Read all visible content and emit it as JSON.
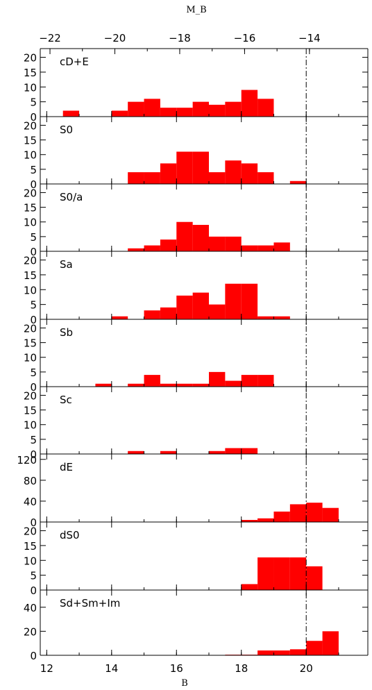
{
  "chart_data": {
    "type": "bar",
    "top_axis_label": "M_B",
    "bottom_axis_label": "B",
    "bottom_ticks": [
      12,
      14,
      16,
      18,
      20
    ],
    "bottom_xlim": [
      11.8,
      21.9
    ],
    "top_ticks": [
      -22,
      -20,
      -18,
      -16,
      -14
    ],
    "top_tick_labels": [
      "−22",
      "−20",
      "−18",
      "−16",
      "−14"
    ],
    "top_axis_offset": 34.1,
    "reference_line_x": 20.0,
    "bin_width": 0.5,
    "panels": [
      {
        "name": "cD+E",
        "ylim": [
          0,
          22
        ],
        "yticks": [
          0,
          5,
          10,
          15,
          20
        ],
        "bins": [
          [
            12.5,
            2
          ],
          [
            14.0,
            2
          ],
          [
            14.5,
            5
          ],
          [
            15.0,
            6
          ],
          [
            15.5,
            3
          ],
          [
            16.0,
            3
          ],
          [
            16.5,
            5
          ],
          [
            17.0,
            4
          ],
          [
            17.5,
            5
          ],
          [
            18.0,
            9
          ],
          [
            18.5,
            6
          ]
        ]
      },
      {
        "name": "S0",
        "ylim": [
          0,
          22
        ],
        "yticks": [
          0,
          5,
          10,
          15,
          20
        ],
        "bins": [
          [
            14.5,
            4
          ],
          [
            15.0,
            4
          ],
          [
            15.5,
            7
          ],
          [
            16.0,
            11
          ],
          [
            16.5,
            11
          ],
          [
            17.0,
            4
          ],
          [
            17.5,
            8
          ],
          [
            18.0,
            7
          ],
          [
            18.5,
            4
          ],
          [
            19.5,
            1
          ]
        ]
      },
      {
        "name": "S0/a",
        "ylim": [
          0,
          22
        ],
        "yticks": [
          0,
          5,
          10,
          15,
          20
        ],
        "bins": [
          [
            14.5,
            1
          ],
          [
            15.0,
            2
          ],
          [
            15.5,
            4
          ],
          [
            16.0,
            10
          ],
          [
            16.5,
            9
          ],
          [
            17.0,
            5
          ],
          [
            17.5,
            5
          ],
          [
            18.0,
            2
          ],
          [
            18.5,
            2
          ],
          [
            19.0,
            3
          ]
        ]
      },
      {
        "name": "Sa",
        "ylim": [
          0,
          22
        ],
        "yticks": [
          0,
          5,
          10,
          15,
          20
        ],
        "bins": [
          [
            14.0,
            1
          ],
          [
            15.0,
            3
          ],
          [
            15.5,
            4
          ],
          [
            16.0,
            8
          ],
          [
            16.5,
            9
          ],
          [
            17.0,
            5
          ],
          [
            17.5,
            12
          ],
          [
            18.0,
            12
          ],
          [
            18.5,
            1
          ],
          [
            19.0,
            1
          ]
        ]
      },
      {
        "name": "Sb",
        "ylim": [
          0,
          22
        ],
        "yticks": [
          0,
          5,
          10,
          15,
          20
        ],
        "bins": [
          [
            13.5,
            1
          ],
          [
            14.5,
            1
          ],
          [
            15.0,
            4
          ],
          [
            15.5,
            1
          ],
          [
            16.0,
            1
          ],
          [
            16.5,
            1
          ],
          [
            17.0,
            5
          ],
          [
            17.5,
            2
          ],
          [
            18.0,
            4
          ],
          [
            18.5,
            4
          ]
        ]
      },
      {
        "name": "Sc",
        "ylim": [
          0,
          22
        ],
        "yticks": [
          0,
          5,
          10,
          15,
          20
        ],
        "bins": [
          [
            14.5,
            1
          ],
          [
            15.5,
            1
          ],
          [
            17.0,
            1
          ],
          [
            17.5,
            2
          ],
          [
            18.0,
            2
          ]
        ]
      },
      {
        "name": "dE",
        "ylim": [
          0,
          125
        ],
        "yticks": [
          0,
          40,
          80,
          120
        ],
        "bins": [
          [
            18.0,
            4
          ],
          [
            18.5,
            7
          ],
          [
            19.0,
            20
          ],
          [
            19.5,
            34
          ],
          [
            20.0,
            37
          ],
          [
            20.5,
            27
          ]
        ]
      },
      {
        "name": "dS0",
        "ylim": [
          0,
          22
        ],
        "yticks": [
          0,
          5,
          10,
          15,
          20
        ],
        "bins": [
          [
            18.0,
            2
          ],
          [
            18.5,
            11
          ],
          [
            19.0,
            11
          ],
          [
            19.5,
            11
          ],
          [
            20.0,
            8
          ]
        ]
      },
      {
        "name": "Sd+Sm+Im",
        "ylim": [
          0,
          52
        ],
        "yticks": [
          0,
          20,
          40
        ],
        "bins": [
          [
            17.5,
            0.5
          ],
          [
            18.0,
            0.5
          ],
          [
            18.5,
            4
          ],
          [
            19.0,
            4
          ],
          [
            19.5,
            5
          ],
          [
            20.0,
            12
          ],
          [
            20.5,
            20
          ]
        ]
      }
    ],
    "colors": {
      "bar": "#ff0000",
      "axis": "#000000"
    }
  }
}
